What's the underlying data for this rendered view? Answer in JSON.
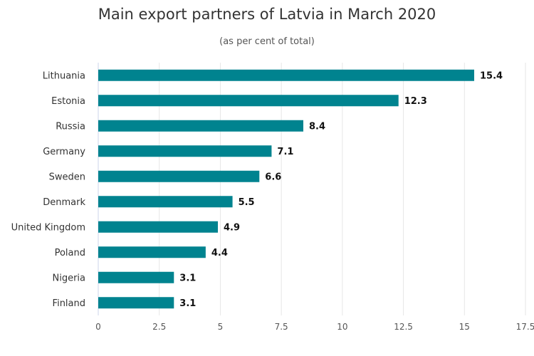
{
  "chart_data": {
    "type": "bar",
    "orientation": "horizontal",
    "title": "Main export partners of Latvia in March 2020",
    "subtitle": "(as per cent of total)",
    "categories": [
      "Lithuania",
      "Estonia",
      "Russia",
      "Germany",
      "Sweden",
      "Denmark",
      "United Kingdom",
      "Poland",
      "Nigeria",
      "Finland"
    ],
    "values": [
      15.4,
      12.3,
      8.4,
      7.1,
      6.6,
      5.5,
      4.9,
      4.4,
      3.1,
      3.1
    ],
    "data_labels": [
      "15.4",
      "12.3",
      "8.4",
      "7.1",
      "6.6",
      "5.5",
      "4.9",
      "4.4",
      "3.1",
      "3.1"
    ],
    "xlim": [
      0,
      17.5
    ],
    "xticks": [
      0,
      2.5,
      5,
      7.5,
      10,
      12.5,
      15,
      17.5
    ],
    "xtick_labels": [
      "0",
      "2.5",
      "5",
      "7.5",
      "10",
      "12.5",
      "15",
      "17.5"
    ],
    "xlabel": "",
    "ylabel": "",
    "grid": "vertical",
    "legend": "none",
    "bar_color": "#00838f"
  }
}
